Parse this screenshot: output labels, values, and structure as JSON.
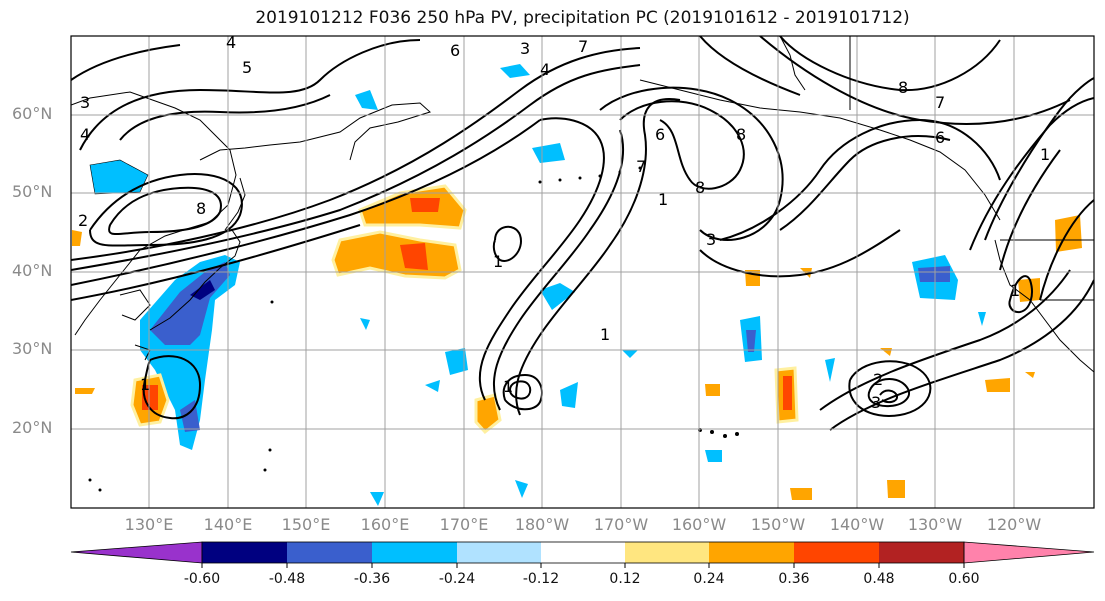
{
  "title": "2019101212 F036 250 hPa PV, precipitation PC (2019101612 - 2019101712)",
  "lat_labels": [
    "60°N",
    "50°N",
    "40°N",
    "30°N",
    "20°N"
  ],
  "lon_labels": [
    "130°E",
    "140°E",
    "150°E",
    "160°E",
    "170°E",
    "180°W",
    "170°W",
    "160°W",
    "150°W",
    "140°W",
    "130°W",
    "120°W"
  ],
  "colorbar": {
    "ticks": [
      "-0.60",
      "-0.48",
      "-0.36",
      "-0.24",
      "-0.12",
      "0.12",
      "0.24",
      "0.36",
      "0.48",
      "0.60"
    ],
    "colors": [
      "#9932cc",
      "#000080",
      "#3a5fcd",
      "#00bfff",
      "#b0e2ff",
      "#ffffff",
      "#ffe680",
      "#ffa500",
      "#ff4500",
      "#b22222",
      "#ff82ab"
    ]
  },
  "contour_labels": [
    "5",
    "6",
    "3",
    "7",
    "3",
    "4",
    "8",
    "2",
    "1",
    "7",
    "6",
    "8",
    "1",
    "3",
    "1",
    "8",
    "7",
    "6",
    "8",
    "1",
    "1",
    "1",
    "2",
    "3",
    "1",
    "4",
    "4"
  ]
}
